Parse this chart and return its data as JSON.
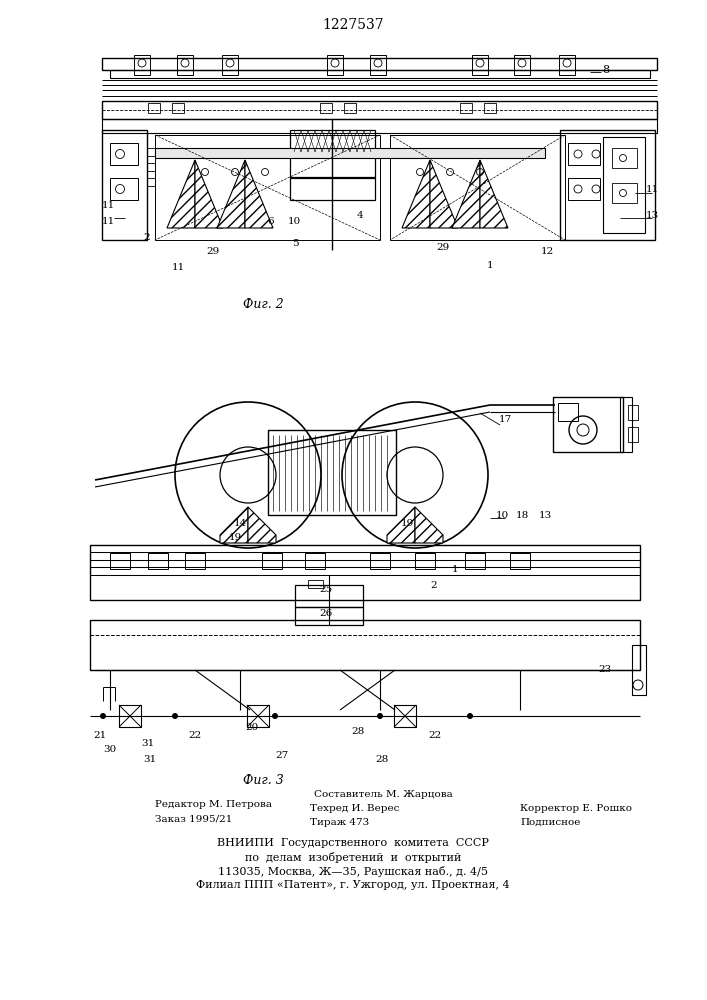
{
  "title": "1227537",
  "bg_color": "#ffffff",
  "fig1_label": "Фиг. 2",
  "fig2_label": "Фиг. 3",
  "footer_left_line1": "Редактор М. Петрова",
  "footer_left_line2": "Заказ 1995/21",
  "footer_center_line1": "Составитель М. Жарцова",
  "footer_center_line2": "Техред И. Верес",
  "footer_center_line3": "Тираж 473",
  "footer_right_line1": "Корректор Е. Рошко",
  "footer_right_line2": "Подписное",
  "footer_vniip1": "ВНИИПИ  Государственного  комитета  СССР",
  "footer_vniip2": "по  делам  изобретений  и  открытий",
  "footer_vniip3": "113035, Москва, Ж—35, Раушская наб., д. 4/5",
  "footer_vniip4": "Филиал ППП «Патент», г. Ужгород, ул. Проектная, 4"
}
